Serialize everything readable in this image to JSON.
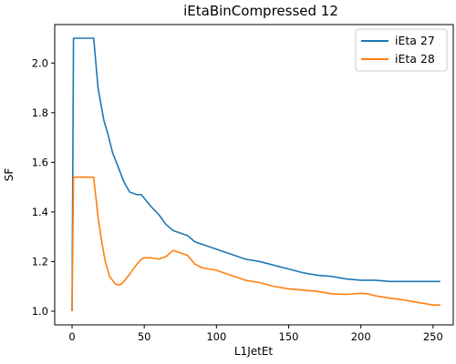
{
  "chart_data": {
    "type": "line",
    "title": "iEtaBinCompressed 12",
    "xlabel": "L1JetEt",
    "ylabel": "SF",
    "xlim": [
      -12,
      264
    ],
    "ylim": [
      0.945,
      2.155
    ],
    "x_ticks": [
      0,
      50,
      100,
      150,
      200,
      250
    ],
    "y_ticks": [
      1.0,
      1.2,
      1.4,
      1.6,
      1.8,
      2.0
    ],
    "x_tick_labels": [
      "0",
      "50",
      "100",
      "150",
      "200",
      "250"
    ],
    "y_tick_labels": [
      "1.0",
      "1.2",
      "1.4",
      "1.6",
      "1.8",
      "2.0"
    ],
    "grid": false,
    "legend_position": "top-right",
    "series": [
      {
        "name": "iEta 27",
        "color": "#1f77b4",
        "x": [
          0,
          1,
          2,
          5,
          10,
          15,
          18,
          22,
          25,
          28,
          32,
          36,
          40,
          45,
          48,
          50,
          55,
          60,
          65,
          70,
          75,
          80,
          85,
          90,
          95,
          100,
          110,
          120,
          130,
          140,
          150,
          160,
          170,
          180,
          190,
          200,
          210,
          220,
          230,
          240,
          250,
          255
        ],
        "y": [
          1.0,
          2.1,
          2.1,
          2.1,
          2.1,
          2.1,
          1.9,
          1.77,
          1.71,
          1.64,
          1.58,
          1.52,
          1.48,
          1.47,
          1.47,
          1.455,
          1.42,
          1.39,
          1.35,
          1.325,
          1.315,
          1.305,
          1.28,
          1.27,
          1.26,
          1.25,
          1.23,
          1.21,
          1.2,
          1.185,
          1.17,
          1.155,
          1.145,
          1.14,
          1.13,
          1.125,
          1.125,
          1.12,
          1.12,
          1.12,
          1.12,
          1.12
        ]
      },
      {
        "name": "iEta 28",
        "color": "#ff7f0e",
        "x": [
          0,
          1,
          2,
          5,
          10,
          15,
          18,
          20,
          23,
          26,
          30,
          33,
          36,
          40,
          45,
          48,
          50,
          55,
          60,
          65,
          70,
          75,
          80,
          85,
          90,
          100,
          110,
          120,
          130,
          140,
          150,
          160,
          170,
          180,
          190,
          200,
          205,
          210,
          220,
          230,
          240,
          250,
          255
        ],
        "y": [
          1.0,
          1.54,
          1.54,
          1.54,
          1.54,
          1.54,
          1.38,
          1.3,
          1.2,
          1.14,
          1.11,
          1.105,
          1.12,
          1.15,
          1.19,
          1.21,
          1.215,
          1.215,
          1.21,
          1.22,
          1.245,
          1.235,
          1.225,
          1.19,
          1.175,
          1.165,
          1.145,
          1.125,
          1.115,
          1.1,
          1.09,
          1.085,
          1.08,
          1.07,
          1.068,
          1.072,
          1.07,
          1.062,
          1.053,
          1.045,
          1.035,
          1.025,
          1.025
        ]
      }
    ]
  }
}
